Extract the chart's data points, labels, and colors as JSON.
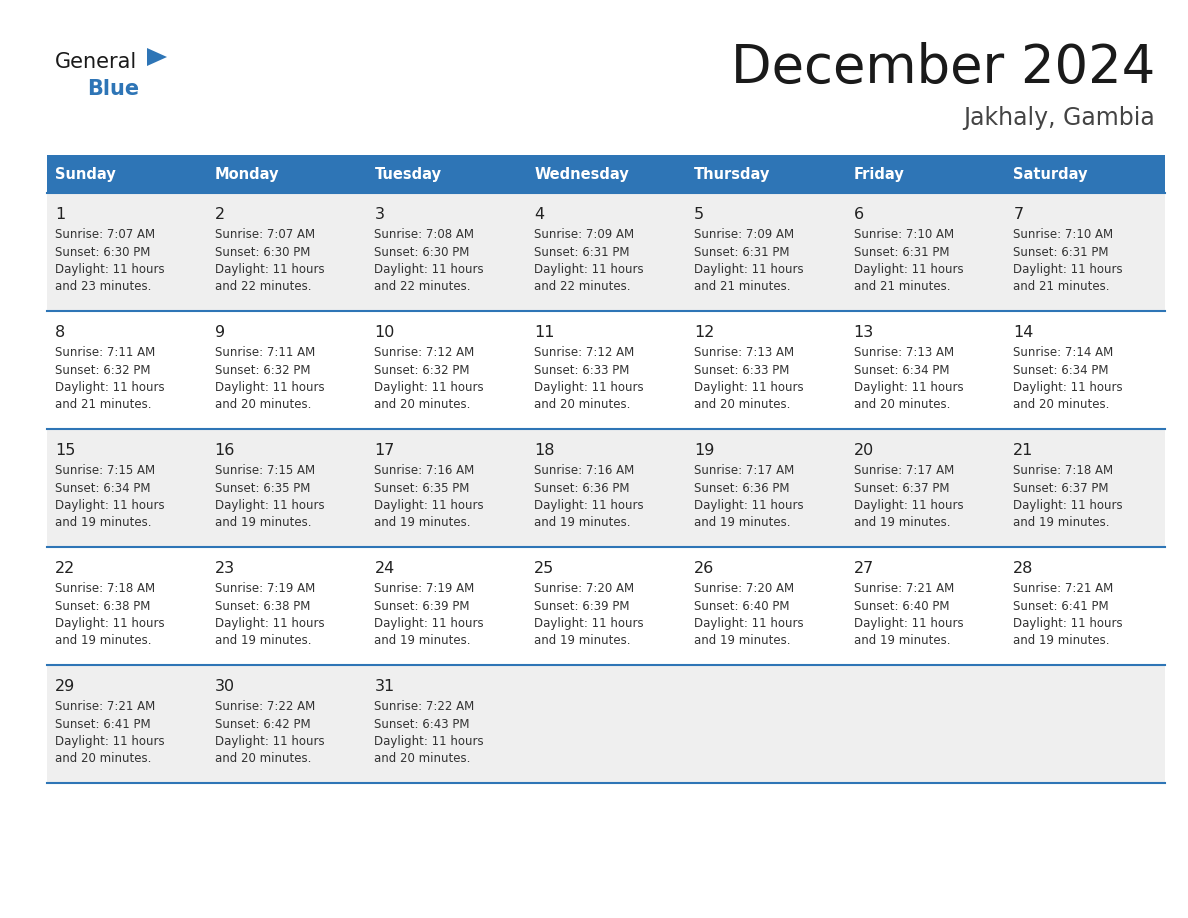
{
  "title": "December 2024",
  "subtitle": "Jakhaly, Gambia",
  "days_of_week": [
    "Sunday",
    "Monday",
    "Tuesday",
    "Wednesday",
    "Thursday",
    "Friday",
    "Saturday"
  ],
  "header_bg_color": "#2E75B6",
  "header_text_color": "#FFFFFF",
  "cell_bg_even": "#EFEFEF",
  "cell_bg_odd": "#FFFFFF",
  "cell_text_color": "#333333",
  "day_num_color": "#222222",
  "title_color": "#1a1a1a",
  "subtitle_color": "#444444",
  "general_color": "#1a1a1a",
  "blue_color": "#2E75B6",
  "border_color": "#2E75B6",
  "calendar_data": [
    [
      {
        "day": 1,
        "sunrise": "7:07 AM",
        "sunset": "6:30 PM",
        "daylight_hours": 11,
        "daylight_minutes": 23
      },
      {
        "day": 2,
        "sunrise": "7:07 AM",
        "sunset": "6:30 PM",
        "daylight_hours": 11,
        "daylight_minutes": 22
      },
      {
        "day": 3,
        "sunrise": "7:08 AM",
        "sunset": "6:30 PM",
        "daylight_hours": 11,
        "daylight_minutes": 22
      },
      {
        "day": 4,
        "sunrise": "7:09 AM",
        "sunset": "6:31 PM",
        "daylight_hours": 11,
        "daylight_minutes": 22
      },
      {
        "day": 5,
        "sunrise": "7:09 AM",
        "sunset": "6:31 PM",
        "daylight_hours": 11,
        "daylight_minutes": 21
      },
      {
        "day": 6,
        "sunrise": "7:10 AM",
        "sunset": "6:31 PM",
        "daylight_hours": 11,
        "daylight_minutes": 21
      },
      {
        "day": 7,
        "sunrise": "7:10 AM",
        "sunset": "6:31 PM",
        "daylight_hours": 11,
        "daylight_minutes": 21
      }
    ],
    [
      {
        "day": 8,
        "sunrise": "7:11 AM",
        "sunset": "6:32 PM",
        "daylight_hours": 11,
        "daylight_minutes": 21
      },
      {
        "day": 9,
        "sunrise": "7:11 AM",
        "sunset": "6:32 PM",
        "daylight_hours": 11,
        "daylight_minutes": 20
      },
      {
        "day": 10,
        "sunrise": "7:12 AM",
        "sunset": "6:32 PM",
        "daylight_hours": 11,
        "daylight_minutes": 20
      },
      {
        "day": 11,
        "sunrise": "7:12 AM",
        "sunset": "6:33 PM",
        "daylight_hours": 11,
        "daylight_minutes": 20
      },
      {
        "day": 12,
        "sunrise": "7:13 AM",
        "sunset": "6:33 PM",
        "daylight_hours": 11,
        "daylight_minutes": 20
      },
      {
        "day": 13,
        "sunrise": "7:13 AM",
        "sunset": "6:34 PM",
        "daylight_hours": 11,
        "daylight_minutes": 20
      },
      {
        "day": 14,
        "sunrise": "7:14 AM",
        "sunset": "6:34 PM",
        "daylight_hours": 11,
        "daylight_minutes": 20
      }
    ],
    [
      {
        "day": 15,
        "sunrise": "7:15 AM",
        "sunset": "6:34 PM",
        "daylight_hours": 11,
        "daylight_minutes": 19
      },
      {
        "day": 16,
        "sunrise": "7:15 AM",
        "sunset": "6:35 PM",
        "daylight_hours": 11,
        "daylight_minutes": 19
      },
      {
        "day": 17,
        "sunrise": "7:16 AM",
        "sunset": "6:35 PM",
        "daylight_hours": 11,
        "daylight_minutes": 19
      },
      {
        "day": 18,
        "sunrise": "7:16 AM",
        "sunset": "6:36 PM",
        "daylight_hours": 11,
        "daylight_minutes": 19
      },
      {
        "day": 19,
        "sunrise": "7:17 AM",
        "sunset": "6:36 PM",
        "daylight_hours": 11,
        "daylight_minutes": 19
      },
      {
        "day": 20,
        "sunrise": "7:17 AM",
        "sunset": "6:37 PM",
        "daylight_hours": 11,
        "daylight_minutes": 19
      },
      {
        "day": 21,
        "sunrise": "7:18 AM",
        "sunset": "6:37 PM",
        "daylight_hours": 11,
        "daylight_minutes": 19
      }
    ],
    [
      {
        "day": 22,
        "sunrise": "7:18 AM",
        "sunset": "6:38 PM",
        "daylight_hours": 11,
        "daylight_minutes": 19
      },
      {
        "day": 23,
        "sunrise": "7:19 AM",
        "sunset": "6:38 PM",
        "daylight_hours": 11,
        "daylight_minutes": 19
      },
      {
        "day": 24,
        "sunrise": "7:19 AM",
        "sunset": "6:39 PM",
        "daylight_hours": 11,
        "daylight_minutes": 19
      },
      {
        "day": 25,
        "sunrise": "7:20 AM",
        "sunset": "6:39 PM",
        "daylight_hours": 11,
        "daylight_minutes": 19
      },
      {
        "day": 26,
        "sunrise": "7:20 AM",
        "sunset": "6:40 PM",
        "daylight_hours": 11,
        "daylight_minutes": 19
      },
      {
        "day": 27,
        "sunrise": "7:21 AM",
        "sunset": "6:40 PM",
        "daylight_hours": 11,
        "daylight_minutes": 19
      },
      {
        "day": 28,
        "sunrise": "7:21 AM",
        "sunset": "6:41 PM",
        "daylight_hours": 11,
        "daylight_minutes": 19
      }
    ],
    [
      {
        "day": 29,
        "sunrise": "7:21 AM",
        "sunset": "6:41 PM",
        "daylight_hours": 11,
        "daylight_minutes": 20
      },
      {
        "day": 30,
        "sunrise": "7:22 AM",
        "sunset": "6:42 PM",
        "daylight_hours": 11,
        "daylight_minutes": 20
      },
      {
        "day": 31,
        "sunrise": "7:22 AM",
        "sunset": "6:43 PM",
        "daylight_hours": 11,
        "daylight_minutes": 20
      },
      null,
      null,
      null,
      null
    ]
  ],
  "logo_text_general": "General",
  "logo_text_blue": "Blue",
  "num_rows": 5,
  "num_cols": 7
}
